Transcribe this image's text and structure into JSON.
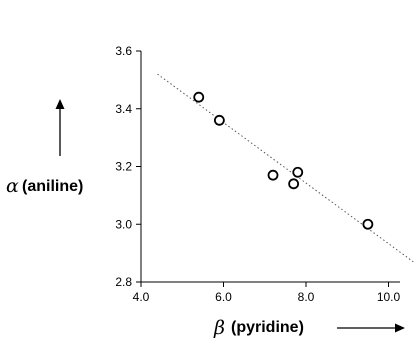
{
  "chart_data": {
    "type": "scatter",
    "title": "",
    "xlabel": {
      "symbol": "β",
      "text": "(pyridine)"
    },
    "ylabel": {
      "symbol": "α",
      "text": "(aniline)"
    },
    "xlim": [
      4.0,
      11.0
    ],
    "ylim": [
      2.8,
      3.6
    ],
    "x_ticks": [
      "4.0",
      "6.0",
      "8.0",
      "10.0"
    ],
    "y_ticks": [
      "2.8",
      "3.0",
      "3.2",
      "3.4",
      "3.6"
    ],
    "points": [
      {
        "x": 5.4,
        "y": 3.44
      },
      {
        "x": 5.9,
        "y": 3.36
      },
      {
        "x": 7.2,
        "y": 3.17
      },
      {
        "x": 7.7,
        "y": 3.14
      },
      {
        "x": 7.8,
        "y": 3.18
      },
      {
        "x": 9.5,
        "y": 3.0
      }
    ],
    "trendline": {
      "x": [
        4.4,
        10.6
      ],
      "y": [
        3.52,
        2.87
      ],
      "style": "dotted"
    },
    "grid": false,
    "legend": "none",
    "marker": "open-circle",
    "colors": {
      "marker": "#000000",
      "trendline": "#555555",
      "axis": "#000000"
    }
  }
}
